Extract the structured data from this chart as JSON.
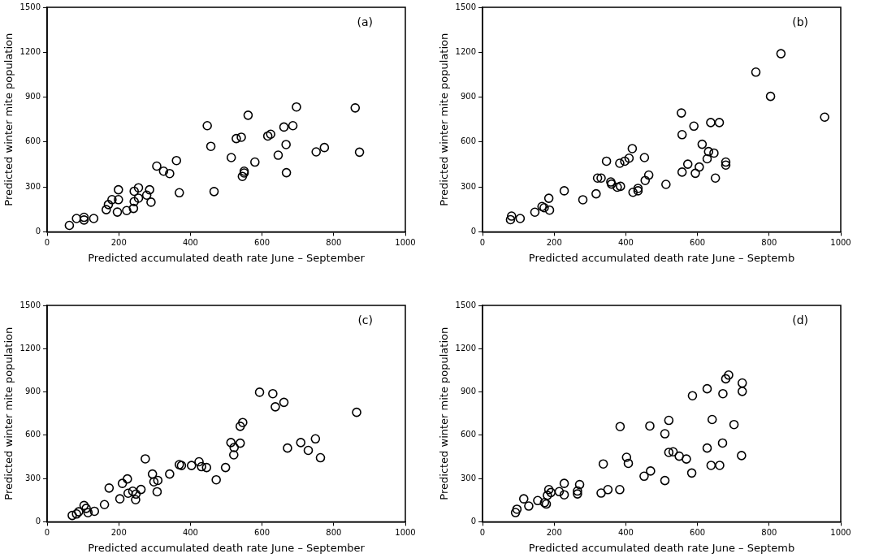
{
  "chart_data": [
    {
      "type": "scatter",
      "annotations": [
        "(a)"
      ],
      "xlabel": "Predicted accumulated death rate June – September",
      "ylabel": "Predicted winter mite population",
      "color": "#000000",
      "marker": "circle",
      "grid": false,
      "xlim": [
        0,
        1000
      ],
      "ylim": [
        0,
        1500
      ],
      "xticks": [
        0,
        200,
        400,
        600,
        800,
        1000
      ],
      "yticks": [
        0,
        300,
        600,
        900,
        1200,
        1500
      ],
      "x": [
        62,
        82,
        103,
        103,
        130,
        165,
        171,
        181,
        199,
        199,
        196,
        222,
        241,
        243,
        243,
        255,
        255,
        278,
        286,
        290,
        306,
        325,
        342,
        361,
        369,
        447,
        457,
        466,
        514,
        528,
        542,
        561,
        545,
        550,
        550,
        580,
        616,
        624,
        645,
        661,
        667,
        668,
        686,
        696,
        751,
        774,
        860,
        872
      ],
      "values": [
        43,
        89,
        97,
        79,
        89,
        148,
        182,
        215,
        281,
        215,
        132,
        142,
        156,
        202,
        271,
        294,
        225,
        245,
        281,
        198,
        439,
        405,
        389,
        476,
        261,
        709,
        571,
        269,
        496,
        623,
        632,
        779,
        370,
        393,
        405,
        466,
        640,
        652,
        512,
        700,
        583,
        395,
        709,
        834,
        534,
        563,
        828,
        532
      ]
    },
    {
      "type": "scatter",
      "annotations": [
        "(b)"
      ],
      "xlabel": "Predicted accumulated death rate June – Septemb",
      "ylabel": "Predicted winter mite population",
      "color": "#000000",
      "marker": "circle",
      "grid": false,
      "xlim": [
        0,
        1000
      ],
      "ylim": [
        0,
        1500
      ],
      "xticks": [
        0,
        200,
        400,
        600,
        800,
        1000
      ],
      "yticks": [
        0,
        300,
        600,
        900,
        1200,
        1500
      ],
      "x": [
        78,
        81,
        105,
        146,
        166,
        172,
        185,
        187,
        228,
        280,
        317,
        321,
        331,
        346,
        358,
        360,
        376,
        385,
        383,
        397,
        409,
        418,
        420,
        434,
        434,
        452,
        454,
        464,
        512,
        555,
        557,
        557,
        573,
        590,
        594,
        605,
        613,
        627,
        631,
        646,
        650,
        637,
        661,
        679,
        679,
        763,
        804,
        833,
        955
      ],
      "values": [
        81,
        105,
        89,
        131,
        169,
        161,
        224,
        145,
        274,
        214,
        254,
        359,
        359,
        472,
        333,
        319,
        298,
        304,
        458,
        472,
        492,
        556,
        264,
        274,
        290,
        496,
        343,
        379,
        317,
        794,
        649,
        399,
        452,
        706,
        391,
        433,
        585,
        488,
        536,
        526,
        359,
        730,
        730,
        466,
        446,
        1067,
        905,
        1190,
        766
      ]
    },
    {
      "type": "scatter",
      "annotations": [
        "(c)"
      ],
      "xlabel": "Predicted accumulated death rate June – September",
      "ylabel": "Predicted winter mite population",
      "color": "#000000",
      "marker": "circle",
      "grid": false,
      "xlim": [
        0,
        1000
      ],
      "ylim": [
        0,
        1500
      ],
      "xticks": [
        0,
        200,
        400,
        600,
        800,
        1000
      ],
      "yticks": [
        0,
        300,
        600,
        900,
        1200,
        1500
      ],
      "x": [
        70,
        82,
        88,
        103,
        109,
        114,
        132,
        160,
        173,
        203,
        210,
        224,
        226,
        239,
        247,
        248,
        262,
        274,
        294,
        298,
        309,
        307,
        342,
        369,
        375,
        403,
        424,
        431,
        445,
        472,
        498,
        513,
        522,
        521,
        539,
        539,
        546,
        593,
        630,
        637,
        661,
        671,
        708,
        729,
        749,
        763,
        864
      ],
      "values": [
        44,
        54,
        69,
        113,
        93,
        63,
        73,
        119,
        234,
        159,
        266,
        297,
        198,
        212,
        153,
        192,
        224,
        436,
        331,
        277,
        287,
        208,
        331,
        396,
        390,
        390,
        416,
        382,
        376,
        291,
        376,
        549,
        515,
        464,
        545,
        662,
        688,
        898,
        888,
        797,
        828,
        511,
        549,
        495,
        575,
        444,
        759
      ]
    },
    {
      "type": "scatter",
      "annotations": [
        "(d)"
      ],
      "xlabel": "Predicted accumulated death rate June – Septemb",
      "ylabel": "Predicted winter mite population",
      "color": "#000000",
      "marker": "circle",
      "grid": false,
      "xlim": [
        0,
        1000
      ],
      "ylim": [
        0,
        1500
      ],
      "xticks": [
        0,
        200,
        400,
        600,
        800,
        1000
      ],
      "yticks": [
        0,
        300,
        600,
        900,
        1200,
        1500
      ],
      "x": [
        92,
        96,
        115,
        129,
        154,
        173,
        178,
        181,
        185,
        191,
        214,
        228,
        228,
        265,
        265,
        271,
        331,
        350,
        337,
        383,
        384,
        402,
        407,
        451,
        469,
        467,
        509,
        509,
        520,
        520,
        532,
        549,
        569,
        584,
        586,
        627,
        627,
        638,
        641,
        662,
        670,
        671,
        679,
        687,
        702,
        725,
        725,
        723
      ],
      "values": [
        64,
        87,
        159,
        109,
        147,
        133,
        123,
        183,
        223,
        203,
        209,
        266,
        187,
        213,
        193,
        258,
        199,
        223,
        401,
        223,
        660,
        447,
        405,
        316,
        352,
        664,
        610,
        286,
        703,
        481,
        485,
        455,
        435,
        338,
        874,
        922,
        511,
        391,
        709,
        391,
        546,
        888,
        991,
        1017,
        674,
        962,
        904,
        459
      ]
    }
  ]
}
